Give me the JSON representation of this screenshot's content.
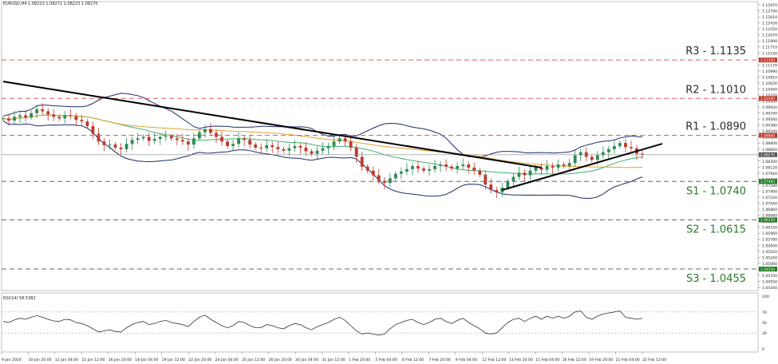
{
  "header": {
    "symbol_line": "EURUSD,H4 1.08223 1.08272 1.08223 1.08270",
    "rsi_line": "RSI(14) 58.5382"
  },
  "colors": {
    "candle_up": "#2e8b57",
    "candle_down": "#c0392b",
    "bollinger": "#1f2a6b",
    "ma_fast": "#3cb371",
    "ma_slow": "#e0a030",
    "trendline": "#000000",
    "resistance": "#e06060",
    "support": "#2a7a2a",
    "rsi_line": "#333333"
  },
  "chart_data": [
    {
      "type": "candlestick",
      "symbol": "EURUSD",
      "timeframe": "H4",
      "ylim": [
        1.0385,
        1.1325
      ],
      "price_ticks": [
        "1.12970",
        "1.12790",
        "1.12610",
        "1.12430",
        "1.12250",
        "1.12070",
        "1.11890",
        "1.11710",
        "1.11530",
        "1.11350",
        "1.11170",
        "1.10990",
        "1.10810",
        "1.10630",
        "1.10450",
        "1.10270",
        "1.10100",
        "1.09920",
        "1.09740",
        "1.09560",
        "1.09380",
        "1.09200",
        "1.09020",
        "1.08900",
        "1.08660",
        "1.08480",
        "1.08300",
        "1.08120",
        "1.07940",
        "1.07760",
        "1.07580",
        "1.07400",
        "1.07220",
        "1.07040",
        "1.06860",
        "1.06680",
        "1.06500",
        "1.06150",
        "1.05960",
        "1.05780",
        "1.05600",
        "1.05420",
        "1.05240",
        "1.05060",
        "1.04880",
        "1.04700",
        "1.04550",
        "1.04340"
      ],
      "current_price": "1.08270",
      "x_labels": [
        "9 Jan 2024",
        "10 Jan 20:00",
        "12 Jan 04:00",
        "15 Jan 12:00",
        "16 Jan 20:00",
        "18 Jan 04:00",
        "19 Jan 12:00",
        "22 Jan 20:00",
        "24 Jan 04:00",
        "25 Jan 12:00",
        "26 Jan 20:00",
        "30 Jan 04:00",
        "31 Jan 12:00",
        "1 Feb 20:00",
        "5 Feb 04:00",
        "6 Feb 12:00",
        "7 Feb 20:00",
        "9 Feb 04:00",
        "12 Feb 12:00",
        "13 Feb 20:00",
        "15 Feb 04:00",
        "16 Feb 12:00",
        "19 Feb 20:00",
        "21 Feb 04:00",
        "22 Feb 12:00"
      ],
      "closes": [
        1.0945,
        1.0938,
        1.095,
        1.0955,
        1.0948,
        1.0962,
        1.0975,
        1.0968,
        1.0958,
        1.095,
        1.0945,
        1.0955,
        1.0952,
        1.094,
        1.0935,
        1.092,
        1.0895,
        1.087,
        1.0858,
        1.086,
        1.085,
        1.0845,
        1.0862,
        1.0875,
        1.088,
        1.0885,
        1.0872,
        1.0878,
        1.0885,
        1.0888,
        1.088,
        1.0875,
        1.087,
        1.086,
        1.088,
        1.09,
        1.091,
        1.0898,
        1.0885,
        1.087,
        1.0855,
        1.0862,
        1.088,
        1.0875,
        1.086,
        1.085,
        1.0848,
        1.0858,
        1.0852,
        1.0845,
        1.084,
        1.0848,
        1.0855,
        1.085,
        1.0838,
        1.083,
        1.084,
        1.0848,
        1.0855,
        1.087,
        1.088,
        1.087,
        1.085,
        1.082,
        1.0788,
        1.0775,
        1.076,
        1.0742,
        1.0735,
        1.075,
        1.0765,
        1.0772,
        1.078,
        1.079,
        1.0782,
        1.0775,
        1.078,
        1.079,
        1.0795,
        1.0788,
        1.0782,
        1.079,
        1.0795,
        1.0785,
        1.0775,
        1.0762,
        1.073,
        1.0712,
        1.0705,
        1.072,
        1.074,
        1.0755,
        1.0768,
        1.076,
        1.0775,
        1.0785,
        1.0778,
        1.079,
        1.0785,
        1.0795,
        1.079,
        1.08,
        1.0825,
        1.0835,
        1.082,
        1.081,
        1.0825,
        1.0835,
        1.0845,
        1.0855,
        1.0865,
        1.0852,
        1.0848,
        1.083,
        1.0827
      ],
      "resistance_levels": [
        {
          "label": "R3 - 1.1135",
          "value": 1.1135,
          "tag": "1.11350"
        },
        {
          "label": "R2 - 1.1010",
          "value": 1.101,
          "tag": "1.10100"
        },
        {
          "label": "R1 - 1.0890",
          "value": 1.089,
          "tag": "1.08900"
        }
      ],
      "support_levels": [
        {
          "label": "S1 - 1.0740",
          "value": 1.074,
          "tag": "1.07400"
        },
        {
          "label": "S2 - 1.0615",
          "value": 1.0615,
          "tag": "1.06150"
        },
        {
          "label": "S3 - 1.0455",
          "value": 1.0455,
          "tag": "1.04550"
        }
      ],
      "downtrend_line": [
        {
          "x": 0,
          "y": 1.1065
        },
        {
          "x": 96,
          "y": 1.0785
        }
      ],
      "uptrend_line": [
        {
          "x": 89,
          "y": 1.0712
        },
        {
          "x": 114,
          "y": 1.0847
        }
      ]
    },
    {
      "type": "line",
      "name": "RSI(14)",
      "last_value": 58.5382,
      "ylim": [
        0,
        100
      ],
      "y_ticks": [
        "100",
        "70",
        "50",
        "30",
        "0"
      ],
      "levels": [
        70,
        30
      ],
      "values": [
        52,
        50,
        55,
        58,
        56,
        60,
        63,
        60,
        56,
        53,
        52,
        56,
        55,
        50,
        48,
        44,
        38,
        32,
        34,
        36,
        33,
        32,
        40,
        46,
        50,
        52,
        46,
        48,
        52,
        54,
        50,
        48,
        46,
        42,
        52,
        60,
        64,
        56,
        50,
        44,
        40,
        44,
        52,
        50,
        44,
        40,
        40,
        46,
        44,
        40,
        38,
        44,
        48,
        46,
        40,
        36,
        42,
        46,
        50,
        56,
        60,
        54,
        44,
        34,
        28,
        30,
        28,
        26,
        28,
        38,
        46,
        50,
        54,
        56,
        50,
        46,
        50,
        56,
        58,
        52,
        48,
        54,
        58,
        50,
        44,
        38,
        30,
        28,
        30,
        40,
        50,
        56,
        58,
        52,
        58,
        62,
        56,
        62,
        58,
        62,
        58,
        62,
        70,
        72,
        60,
        56,
        62,
        66,
        68,
        70,
        72,
        60,
        58,
        56,
        58
      ]
    }
  ]
}
